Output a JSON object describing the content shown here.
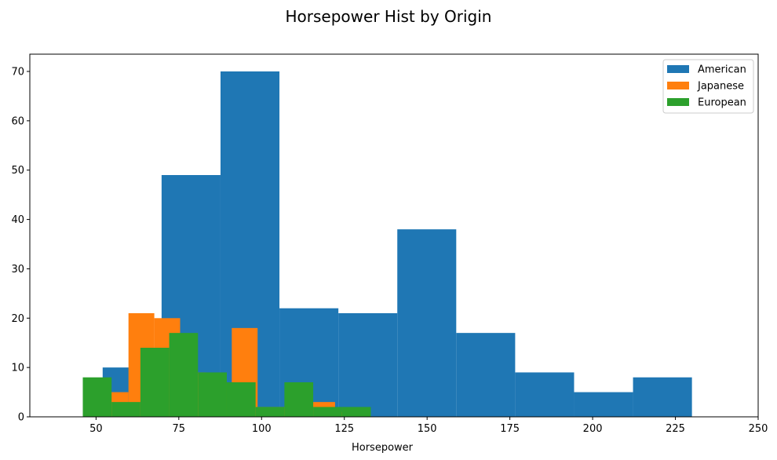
{
  "chart_data": {
    "type": "bar",
    "title": "Horsepower Hist by Origin",
    "xlabel": "Horsepower",
    "ylabel": "",
    "xlim": [
      30,
      250
    ],
    "ylim": [
      0,
      73.5
    ],
    "xticks": [
      50,
      75,
      100,
      125,
      150,
      175,
      200,
      225,
      250
    ],
    "yticks": [
      0,
      10,
      20,
      30,
      40,
      50,
      60,
      70
    ],
    "grid": false,
    "legend_position": "top-right",
    "series": [
      {
        "name": "American",
        "color": "#1f77b4",
        "bin_edges": [
          52,
          69.8,
          87.6,
          105.4,
          123.2,
          141,
          158.8,
          176.6,
          194.4,
          212.2,
          230
        ],
        "counts": [
          10,
          49,
          70,
          22,
          21,
          38,
          17,
          9,
          5,
          8
        ]
      },
      {
        "name": "Japanese",
        "color": "#ff7f0e",
        "bin_edges": [
          52,
          59.8,
          67.6,
          75.4,
          83.2,
          91,
          98.8,
          106.6,
          114.4,
          122.2,
          130
        ],
        "counts": [
          5,
          21,
          20,
          9,
          7,
          18,
          2,
          2,
          3,
          1
        ]
      },
      {
        "name": "European",
        "color": "#2ca02c",
        "bin_edges": [
          46,
          54.7,
          63.4,
          72.1,
          80.8,
          89.5,
          98.2,
          106.9,
          115.6,
          124.3,
          133
        ],
        "counts": [
          8,
          3,
          14,
          17,
          9,
          7,
          2,
          7,
          2,
          2
        ]
      }
    ]
  }
}
